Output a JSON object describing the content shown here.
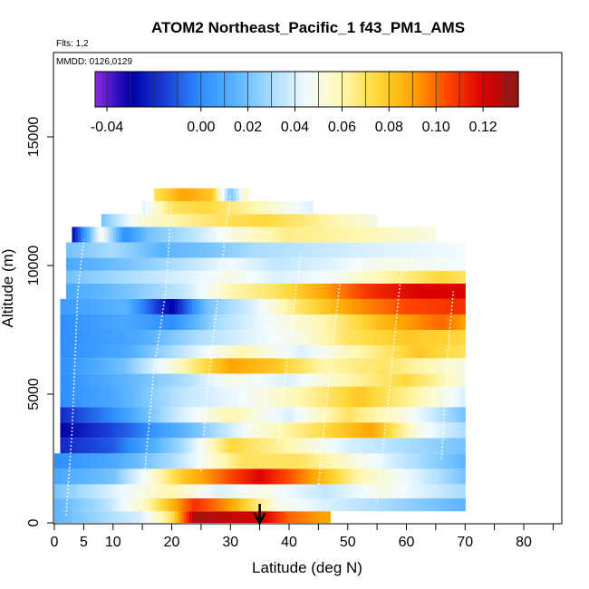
{
  "chart_data": {
    "type": "heatmap",
    "title": "ATOM2 Northeast_Pacific_1 f43_PM1_AMS",
    "subtitle_flights": "Flts: 1,2",
    "subtitle_dates": "MMDD: 0126,0129",
    "xlabel": "Latitude (deg N)",
    "ylabel": "Altitude (m)",
    "xlim": [
      0,
      85
    ],
    "ylim": [
      0,
      17500
    ],
    "x_ticks": [
      0,
      5,
      10,
      20,
      30,
      40,
      50,
      60,
      70,
      80
    ],
    "y_ticks": [
      0,
      5000,
      10000,
      15000
    ],
    "colorbar": {
      "min": -0.045,
      "max": 0.135,
      "ticks": [
        -0.04,
        0.0,
        0.02,
        0.04,
        0.06,
        0.08,
        0.1,
        0.12
      ],
      "tick_labels": [
        "-0.04",
        "0.00",
        "0.02",
        "0.04",
        "0.06",
        "0.08",
        "0.10",
        "0.12"
      ],
      "colors": [
        "#8a2be2",
        "#0000a8",
        "#1a3fd6",
        "#2e8fff",
        "#5ab4ff",
        "#a9dcff",
        "#f2fbff",
        "#fff7b0",
        "#ffd83a",
        "#ffa500",
        "#ff4500",
        "#dd0000",
        "#8b1a1a"
      ]
    },
    "marker_arrow_latitude": 35,
    "bands": [
      {
        "alt_bottom": 0,
        "alt_top": 450,
        "lat_start": 0,
        "lat_end": 47,
        "anchors": [
          [
            0,
            0.015
          ],
          [
            15,
            0.04
          ],
          [
            20,
            0.07
          ],
          [
            24,
            0.13
          ],
          [
            30,
            0.125
          ],
          [
            36,
            0.12
          ],
          [
            40,
            0.1
          ],
          [
            46,
            0.09
          ]
        ]
      },
      {
        "alt_bottom": 450,
        "alt_top": 950,
        "lat_start": 0,
        "lat_end": 70,
        "anchors": [
          [
            0,
            0.015
          ],
          [
            8,
            0.03
          ],
          [
            16,
            0.06
          ],
          [
            24,
            0.11
          ],
          [
            30,
            0.09
          ],
          [
            38,
            0.05
          ],
          [
            46,
            0.04
          ],
          [
            56,
            0.03
          ],
          [
            70,
            0.015
          ]
        ]
      },
      {
        "alt_bottom": 950,
        "alt_top": 1500,
        "lat_start": 0,
        "lat_end": 70,
        "anchors": [
          [
            0,
            0.02
          ],
          [
            12,
            0.045
          ],
          [
            20,
            0.06
          ],
          [
            28,
            0.04
          ],
          [
            36,
            0.05
          ],
          [
            46,
            0.035
          ],
          [
            56,
            0.05
          ],
          [
            70,
            0.03
          ]
        ]
      },
      {
        "alt_bottom": 1500,
        "alt_top": 2100,
        "lat_start": 0,
        "lat_end": 70,
        "anchors": [
          [
            0,
            0.01
          ],
          [
            10,
            0.02
          ],
          [
            22,
            0.08
          ],
          [
            35,
            0.12
          ],
          [
            44,
            0.09
          ],
          [
            52,
            0.06
          ],
          [
            62,
            0.04
          ],
          [
            70,
            0.02
          ]
        ]
      },
      {
        "alt_bottom": 2100,
        "alt_top": 2700,
        "lat_start": 0,
        "lat_end": 70,
        "anchors": [
          [
            0,
            0.0
          ],
          [
            10,
            0.01
          ],
          [
            20,
            0.03
          ],
          [
            32,
            0.07
          ],
          [
            42,
            0.07
          ],
          [
            52,
            0.05
          ],
          [
            62,
            0.03
          ],
          [
            70,
            0.015
          ]
        ]
      },
      {
        "alt_bottom": 2700,
        "alt_top": 3300,
        "lat_start": 1,
        "lat_end": 70,
        "anchors": [
          [
            1,
            -0.02
          ],
          [
            10,
            -0.01
          ],
          [
            22,
            0.03
          ],
          [
            30,
            0.075
          ],
          [
            40,
            0.06
          ],
          [
            50,
            0.04
          ],
          [
            60,
            0.03
          ],
          [
            70,
            0.02
          ]
        ]
      },
      {
        "alt_bottom": 3300,
        "alt_top": 3900,
        "lat_start": 1,
        "lat_end": 70,
        "anchors": [
          [
            1,
            -0.03
          ],
          [
            12,
            -0.01
          ],
          [
            24,
            0.02
          ],
          [
            34,
            0.05
          ],
          [
            44,
            0.07
          ],
          [
            54,
            0.09
          ],
          [
            62,
            0.05
          ],
          [
            70,
            0.03
          ]
        ]
      },
      {
        "alt_bottom": 3900,
        "alt_top": 4500,
        "lat_start": 1,
        "lat_end": 70,
        "anchors": [
          [
            1,
            -0.02
          ],
          [
            10,
            0.0
          ],
          [
            22,
            0.04
          ],
          [
            30,
            0.06
          ],
          [
            40,
            0.04
          ],
          [
            50,
            0.07
          ],
          [
            60,
            0.05
          ],
          [
            70,
            0.02
          ]
        ]
      },
      {
        "alt_bottom": 4500,
        "alt_top": 5300,
        "lat_start": 1,
        "lat_end": 70,
        "anchors": [
          [
            1,
            0.0
          ],
          [
            10,
            0.01
          ],
          [
            22,
            0.035
          ],
          [
            32,
            0.045
          ],
          [
            42,
            0.06
          ],
          [
            52,
            0.08
          ],
          [
            62,
            0.06
          ],
          [
            70,
            0.04
          ]
        ]
      },
      {
        "alt_bottom": 5300,
        "alt_top": 5800,
        "lat_start": 1,
        "lat_end": 70,
        "anchors": [
          [
            1,
            0.0
          ],
          [
            12,
            0.015
          ],
          [
            22,
            0.03
          ],
          [
            30,
            0.05
          ],
          [
            40,
            0.04
          ],
          [
            50,
            0.06
          ],
          [
            60,
            0.075
          ],
          [
            70,
            0.05
          ]
        ]
      },
      {
        "alt_bottom": 5800,
        "alt_top": 6400,
        "lat_start": 1,
        "lat_end": 70,
        "anchors": [
          [
            1,
            0.0
          ],
          [
            12,
            0.02
          ],
          [
            22,
            0.06
          ],
          [
            30,
            0.09
          ],
          [
            38,
            0.08
          ],
          [
            46,
            0.06
          ],
          [
            56,
            0.07
          ],
          [
            70,
            0.05
          ]
        ]
      },
      {
        "alt_bottom": 6400,
        "alt_top": 6900,
        "lat_start": 1,
        "lat_end": 70,
        "anchors": [
          [
            1,
            0.0
          ],
          [
            12,
            0.01
          ],
          [
            22,
            0.035
          ],
          [
            32,
            0.06
          ],
          [
            42,
            0.04
          ],
          [
            52,
            0.06
          ],
          [
            62,
            0.08
          ],
          [
            70,
            0.07
          ]
        ]
      },
      {
        "alt_bottom": 6900,
        "alt_top": 7500,
        "lat_start": 1,
        "lat_end": 70,
        "anchors": [
          [
            1,
            0.0
          ],
          [
            14,
            0.01
          ],
          [
            24,
            0.03
          ],
          [
            32,
            0.04
          ],
          [
            42,
            0.05
          ],
          [
            50,
            0.07
          ],
          [
            60,
            0.08
          ],
          [
            70,
            0.075
          ]
        ]
      },
      {
        "alt_bottom": 7500,
        "alt_top": 8100,
        "lat_start": 1,
        "lat_end": 70,
        "anchors": [
          [
            1,
            0.0
          ],
          [
            12,
            0.01
          ],
          [
            20,
            0.0
          ],
          [
            28,
            0.03
          ],
          [
            36,
            0.045
          ],
          [
            46,
            0.06
          ],
          [
            56,
            0.085
          ],
          [
            66,
            0.1
          ],
          [
            70,
            0.09
          ]
        ]
      },
      {
        "alt_bottom": 8100,
        "alt_top": 8700,
        "lat_start": 1,
        "lat_end": 70,
        "anchors": [
          [
            1,
            0.005
          ],
          [
            12,
            0.015
          ],
          [
            20,
            -0.03
          ],
          [
            26,
            0.02
          ],
          [
            34,
            0.04
          ],
          [
            42,
            0.07
          ],
          [
            50,
            0.09
          ],
          [
            60,
            0.105
          ],
          [
            70,
            0.11
          ]
        ]
      },
      {
        "alt_bottom": 8700,
        "alt_top": 9300,
        "lat_start": 2,
        "lat_end": 70,
        "anchors": [
          [
            2,
            0.01
          ],
          [
            12,
            0.02
          ],
          [
            22,
            0.035
          ],
          [
            30,
            0.06
          ],
          [
            38,
            0.07
          ],
          [
            46,
            0.09
          ],
          [
            54,
            0.11
          ],
          [
            62,
            0.12
          ],
          [
            70,
            0.12
          ]
        ]
      },
      {
        "alt_bottom": 9300,
        "alt_top": 9800,
        "lat_start": 2,
        "lat_end": 70,
        "anchors": [
          [
            2,
            0.02
          ],
          [
            12,
            0.03
          ],
          [
            22,
            0.04
          ],
          [
            30,
            0.05
          ],
          [
            38,
            0.04
          ],
          [
            46,
            0.045
          ],
          [
            56,
            0.06
          ],
          [
            66,
            0.075
          ],
          [
            70,
            0.07
          ]
        ]
      },
      {
        "alt_bottom": 9800,
        "alt_top": 10300,
        "lat_start": 2,
        "lat_end": 70,
        "anchors": [
          [
            2,
            0.01
          ],
          [
            12,
            0.02
          ],
          [
            20,
            0.03
          ],
          [
            30,
            0.045
          ],
          [
            38,
            0.035
          ],
          [
            46,
            0.04
          ],
          [
            56,
            0.05
          ],
          [
            70,
            0.045
          ]
        ]
      },
      {
        "alt_bottom": 10300,
        "alt_top": 10900,
        "lat_start": 2,
        "lat_end": 70,
        "anchors": [
          [
            2,
            0.02
          ],
          [
            10,
            0.03
          ],
          [
            18,
            0.015
          ],
          [
            26,
            0.02
          ],
          [
            34,
            0.03
          ],
          [
            44,
            0.035
          ],
          [
            54,
            0.04
          ],
          [
            70,
            0.045
          ]
        ]
      },
      {
        "alt_bottom": 10900,
        "alt_top": 11500,
        "lat_start": 3,
        "lat_end": 65,
        "anchors": [
          [
            3,
            -0.03
          ],
          [
            8,
            0.05
          ],
          [
            12,
            0.0
          ],
          [
            16,
            0.02
          ],
          [
            22,
            0.03
          ],
          [
            30,
            0.05
          ],
          [
            40,
            0.065
          ],
          [
            52,
            0.06
          ],
          [
            65,
            0.05
          ]
        ]
      },
      {
        "alt_bottom": 11500,
        "alt_top": 12000,
        "lat_start": 8,
        "lat_end": 55,
        "anchors": [
          [
            8,
            0.02
          ],
          [
            14,
            0.05
          ],
          [
            20,
            0.06
          ],
          [
            28,
            0.07
          ],
          [
            36,
            0.075
          ],
          [
            44,
            0.065
          ],
          [
            55,
            0.05
          ]
        ]
      },
      {
        "alt_bottom": 12000,
        "alt_top": 12500,
        "lat_start": 15,
        "lat_end": 44,
        "anchors": [
          [
            15,
            0.04
          ],
          [
            20,
            0.07
          ],
          [
            26,
            0.075
          ],
          [
            34,
            0.06
          ],
          [
            44,
            0.04
          ]
        ]
      },
      {
        "alt_bottom": 12500,
        "alt_top": 13000,
        "lat_start": 17,
        "lat_end": 33,
        "anchors": [
          [
            17,
            0.07
          ],
          [
            22,
            0.09
          ],
          [
            27,
            0.08
          ],
          [
            30,
            0.02
          ],
          [
            33,
            0.06
          ]
        ]
      }
    ]
  }
}
